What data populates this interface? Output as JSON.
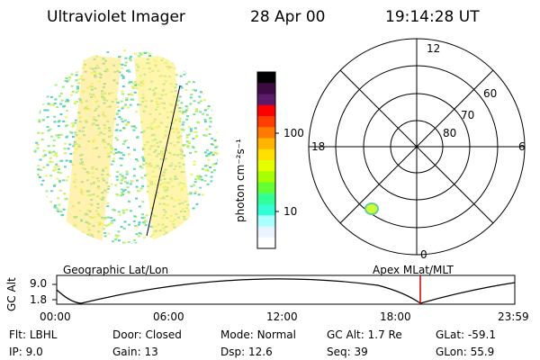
{
  "header": {
    "title": "Ultraviolet Imager",
    "date": "28 Apr 00",
    "time": "19:14:28 UT"
  },
  "colorbar": {
    "unit_label": "photon cm⁻²s⁻¹",
    "ticks": [
      "100",
      "10"
    ],
    "colors": [
      "#000000",
      "#3d0a42",
      "#5c1a6a",
      "#ff0000",
      "#ff3d00",
      "#ff7a00",
      "#ffb400",
      "#ffe000",
      "#e6ff00",
      "#a8ff00",
      "#66ff33",
      "#33ff99",
      "#33ffd6",
      "#aaffff",
      "#e8f4ff",
      "#ffffff"
    ]
  },
  "polar": {
    "mlt_labels": {
      "top": "12",
      "left": "18",
      "right": "6",
      "bottom": "0"
    },
    "lat_labels": [
      "60",
      "70",
      "80"
    ]
  },
  "orbit": {
    "left_title": "Geographic Lat/Lon",
    "right_title": "Apex MLat/MLT",
    "axis_label": "GC Alt",
    "y_ticks": [
      "9.0",
      "1.8"
    ],
    "x_ticks": [
      "00:00",
      "06:00",
      "12:00",
      "18:00",
      "23:59"
    ],
    "marker_color": "#cc0000"
  },
  "info_rows": [
    [
      {
        "label": "Flt:",
        "value": "LBHL"
      },
      {
        "label": "Door:",
        "value": "Closed"
      },
      {
        "label": "Mode:",
        "value": "Normal"
      },
      {
        "label": "GC Alt:",
        "value": "1.7 Re"
      },
      {
        "label": "GLat:",
        "value": "-59.1"
      }
    ],
    [
      {
        "label": "IP:",
        "value": "9.0"
      },
      {
        "label": "Gain:",
        "value": "13"
      },
      {
        "label": "Dsp:",
        "value": "12.6"
      },
      {
        "label": "Seq:",
        "value": "39"
      },
      {
        "label": "GLon:",
        "value": "55.9"
      }
    ]
  ]
}
